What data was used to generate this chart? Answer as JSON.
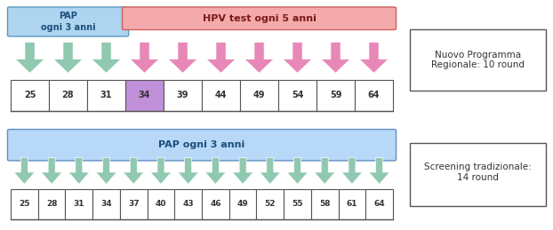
{
  "panel1": {
    "pap_ages": [
      25,
      28,
      31
    ],
    "hpv_ages": [
      34,
      39,
      44,
      49,
      54,
      59,
      64
    ],
    "transition_age": 34,
    "pap_box_label": "PAP\nogni 3 anni",
    "hpv_box_label": "HPV test ogni 5 anni",
    "pap_box_color": "#aed4f0",
    "pap_box_border": "#5a9abf",
    "hpv_box_color": "#f4aaaa",
    "hpv_box_border": "#d06060",
    "pap_arrow_color": "#90c8b0",
    "hpv_arrow_color": "#e888b8",
    "transition_top_color": "#9060c0",
    "transition_bot_color": "#e898c8",
    "label": "Nuovo Programma\nRegionale: 10 round",
    "all_ages": [
      25,
      28,
      31,
      34,
      39,
      44,
      49,
      54,
      59,
      64
    ]
  },
  "panel2": {
    "pap_ages": [
      25,
      28,
      31,
      34,
      37,
      40,
      43,
      46,
      49,
      52,
      55,
      58,
      61,
      64
    ],
    "pap_box_label": "PAP ogni 3 anni",
    "pap_box_color": "#b8d8f8",
    "pap_box_border": "#6090c0",
    "pap_arrow_color": "#90c8b0",
    "label": "Screening tradizionale:\n14 round"
  }
}
